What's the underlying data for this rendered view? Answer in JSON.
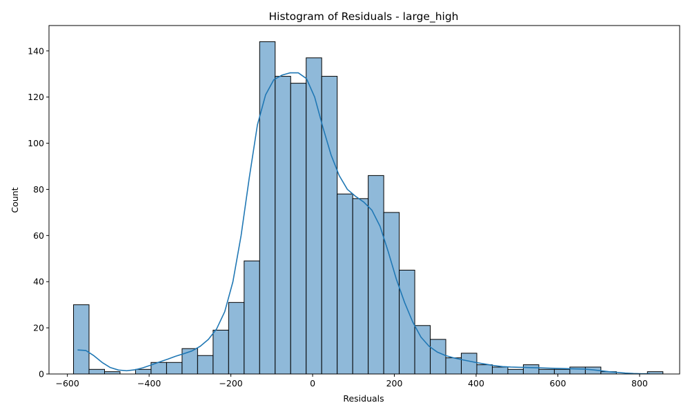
{
  "chart_data": {
    "type": "bar",
    "title": "Histogram of Residuals - large_high",
    "xlabel": "Residuals",
    "ylabel": "Count",
    "xlim": [
      -645,
      898
    ],
    "ylim": [
      0,
      151
    ],
    "x_ticks": [
      -600,
      -400,
      -200,
      0,
      200,
      400,
      600,
      800
    ],
    "y_ticks": [
      0,
      20,
      40,
      60,
      80,
      100,
      120,
      140
    ],
    "bin_start": -585,
    "bin_width": 37.95,
    "counts": [
      30,
      2,
      1,
      0,
      2,
      5,
      5,
      11,
      8,
      19,
      31,
      49,
      144,
      129,
      126,
      137,
      129,
      78,
      76,
      86,
      70,
      45,
      21,
      15,
      7,
      9,
      4,
      3,
      2,
      4,
      2,
      2,
      3,
      3,
      1,
      0,
      0,
      1
    ],
    "kde": {
      "x": [
        -575,
        -555,
        -535,
        -515,
        -495,
        -475,
        -455,
        -435,
        -415,
        -395,
        -375,
        -355,
        -335,
        -315,
        -295,
        -275,
        -255,
        -235,
        -215,
        -195,
        -175,
        -155,
        -135,
        -115,
        -95,
        -75,
        -55,
        -35,
        -15,
        5,
        25,
        45,
        65,
        85,
        105,
        125,
        145,
        165,
        185,
        205,
        225,
        245,
        265,
        285,
        305,
        325,
        345,
        365,
        385,
        405,
        425,
        445,
        465,
        485,
        505,
        525,
        545,
        565,
        585,
        605,
        625,
        645,
        665,
        685,
        705,
        725,
        745,
        765,
        785,
        805,
        825
      ],
      "y": [
        10.4,
        10.2,
        7.9,
        5.0,
        2.8,
        1.7,
        1.4,
        1.8,
        2.7,
        3.9,
        5.2,
        6.4,
        7.7,
        8.8,
        10.0,
        12.0,
        15.0,
        19.5,
        27.0,
        40.0,
        60.0,
        85.0,
        108.0,
        121.0,
        127.5,
        129.5,
        130.5,
        130.5,
        128.0,
        120.0,
        107.0,
        95.0,
        86.0,
        80.0,
        77.0,
        74.5,
        71.0,
        64.0,
        53.0,
        41.0,
        31.0,
        22.5,
        16.0,
        12.0,
        9.5,
        8.0,
        7.0,
        6.2,
        5.5,
        4.8,
        4.2,
        3.6,
        3.2,
        3.0,
        2.9,
        2.8,
        2.7,
        2.6,
        2.5,
        2.4,
        2.3,
        2.2,
        2.1,
        1.8,
        1.4,
        1.0,
        0.7,
        0.4,
        0.2,
        0.1,
        0.1
      ]
    },
    "colors": {
      "bar_fill": "#8fb9d9",
      "bar_edge": "#000000",
      "kde_line": "#1f77b4"
    },
    "grid": false,
    "legend": "none"
  }
}
